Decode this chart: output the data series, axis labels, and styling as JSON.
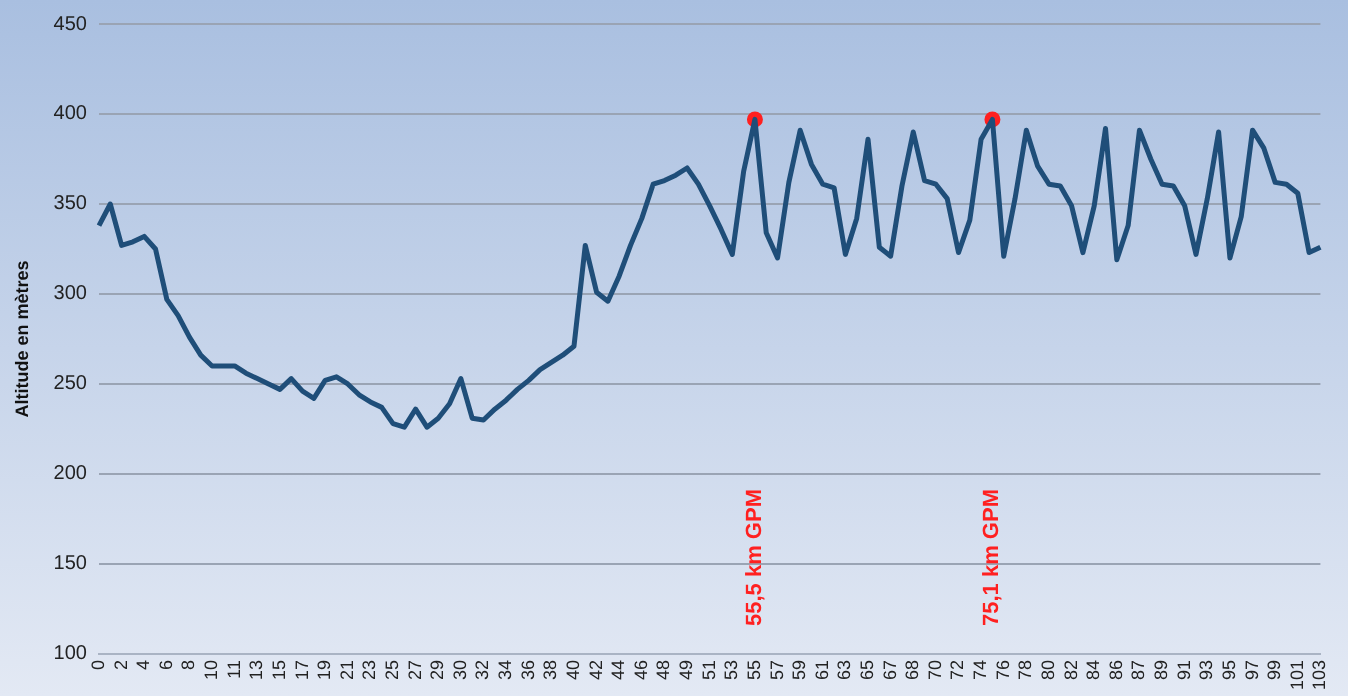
{
  "chart_data": {
    "type": "line",
    "ylabel": "Altitude en mètres",
    "categories": [
      "0",
      null,
      "2",
      null,
      "4",
      null,
      "6",
      null,
      "8",
      null,
      "10",
      null,
      "11",
      null,
      "13",
      null,
      "15",
      null,
      "17",
      null,
      "19",
      null,
      "21",
      null,
      "23",
      null,
      "25",
      null,
      "27",
      null,
      "29",
      null,
      "30",
      null,
      "32",
      null,
      "34",
      null,
      "36",
      null,
      "38",
      null,
      "40",
      null,
      "42",
      null,
      "44",
      null,
      "46",
      null,
      "48",
      null,
      "49",
      null,
      "51",
      null,
      "53",
      null,
      "55",
      null,
      "57",
      null,
      "59",
      null,
      "61",
      null,
      "63",
      null,
      "65",
      null,
      "67",
      null,
      "68",
      null,
      "70",
      null,
      "72",
      null,
      "74",
      null,
      "76",
      null,
      "78",
      null,
      "80",
      null,
      "82",
      null,
      "84",
      null,
      "86",
      null,
      "87",
      null,
      "89",
      null,
      "91",
      null,
      "93",
      null,
      "95",
      null,
      "97",
      null,
      "99",
      null,
      "101",
      null,
      "103"
    ],
    "series": [
      {
        "color": "#1f4e79",
        "values": [
          338,
          350,
          327,
          329,
          332,
          325,
          297,
          288,
          276,
          266,
          260,
          260,
          260,
          256,
          253,
          250,
          247,
          253,
          246,
          242,
          252,
          254,
          250,
          244,
          240,
          237,
          228,
          226,
          236,
          226,
          231,
          239,
          253,
          231,
          230,
          236,
          241,
          247,
          252,
          258,
          262,
          266,
          271,
          327,
          301,
          296,
          310,
          327,
          342,
          361,
          363,
          366,
          370,
          361,
          349,
          336,
          322,
          368,
          397,
          334,
          320,
          362,
          391,
          372,
          361,
          359,
          322,
          342,
          386,
          326,
          321,
          360,
          390,
          363,
          361,
          353,
          323,
          341,
          386,
          397,
          321,
          353,
          391,
          371,
          361,
          360,
          349,
          323,
          349,
          392,
          319,
          338,
          391,
          375,
          361,
          360,
          349,
          322,
          353,
          390,
          320,
          343,
          391,
          381,
          362,
          361,
          356,
          323,
          326
        ]
      },
      {
        "type": "scatter",
        "marker": "circle",
        "color": "#ff2020",
        "values": [
          null,
          null,
          null,
          null,
          null,
          null,
          null,
          null,
          null,
          null,
          null,
          null,
          null,
          null,
          null,
          null,
          null,
          null,
          null,
          null,
          null,
          null,
          null,
          null,
          null,
          null,
          null,
          null,
          null,
          null,
          null,
          null,
          null,
          null,
          null,
          null,
          null,
          null,
          null,
          null,
          null,
          null,
          null,
          null,
          null,
          null,
          null,
          null,
          null,
          null,
          null,
          null,
          null,
          null,
          null,
          null,
          null,
          null,
          397,
          null,
          null,
          null,
          null,
          null,
          null,
          null,
          null,
          null,
          null,
          null,
          null,
          null,
          null,
          null,
          null,
          null,
          null,
          null,
          null,
          397,
          null,
          null,
          null,
          null,
          null,
          null,
          null,
          null,
          null,
          null,
          null,
          null,
          null,
          null,
          null,
          null,
          null,
          null,
          null,
          null,
          null,
          null,
          null,
          null,
          null,
          null,
          null,
          null,
          null
        ]
      }
    ],
    "annotations": [
      "55,5 km GPM",
      "75,1 km GPM"
    ],
    "ylim": [
      100,
      450
    ],
    "yticks": [
      100,
      150,
      200,
      250,
      300,
      350,
      400,
      450
    ],
    "grid": "y",
    "legend": false,
    "marker": "none",
    "line_style": "solid"
  }
}
